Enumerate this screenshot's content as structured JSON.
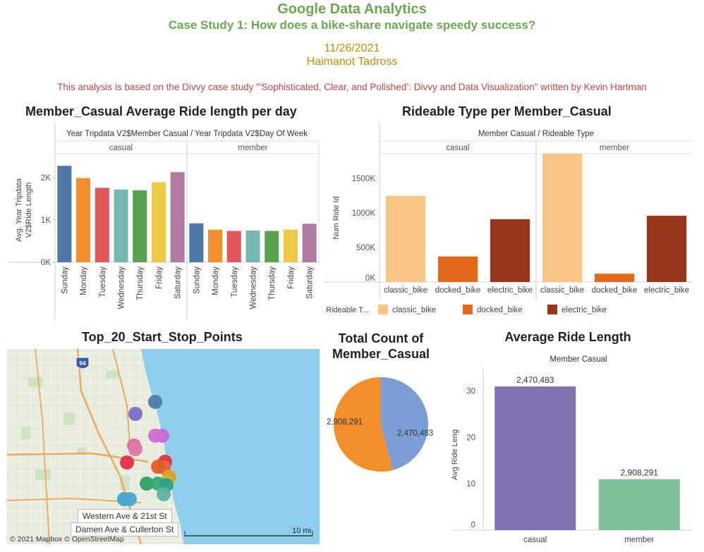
{
  "header": {
    "title": "Google Data Analytics",
    "subtitle": "Case Study 1: How does a bike-share navigate speedy success?",
    "date": "11/26/2021",
    "author": "Haimanot Tadross",
    "note": "This analysis is based on the Divvy case study \"'Sophisticated, Clear, and Polished’: Divvy and Data Visualization\" written by Kevin Hartman"
  },
  "chart_data": [
    {
      "id": "avg_ride_per_day",
      "type": "bar",
      "title": "Member_Casual Average Ride length per day",
      "header": "Year Tripdata V2$Member Casual / Year Tripdata V2$Day Of Week",
      "ylabel_line1": "Avg. Year Tripdata",
      "ylabel_line2": "V2$Ride Length",
      "ylim": [
        0,
        2500
      ],
      "yticks": [
        0,
        1000,
        2000
      ],
      "ytick_labels": [
        "0K",
        "1K",
        "2K"
      ],
      "groups": [
        "casual",
        "member"
      ],
      "categories": [
        "Sunday",
        "Monday",
        "Tuesday",
        "Wednesday",
        "Thursday",
        "Friday",
        "Saturday"
      ],
      "colors": [
        "#4e79a7",
        "#f28e2b",
        "#e15759",
        "#76b7b2",
        "#59a14f",
        "#edc948",
        "#b07aa1"
      ],
      "series": [
        {
          "name": "casual",
          "values": [
            2280,
            1990,
            1760,
            1720,
            1700,
            1890,
            2130
          ]
        },
        {
          "name": "member",
          "values": [
            920,
            770,
            740,
            750,
            740,
            770,
            910
          ]
        }
      ]
    },
    {
      "id": "rideable_type",
      "type": "bar",
      "title": "Rideable Type per Member_Casual",
      "header": "Member Casual / Rideable Type",
      "ylabel": "Num Ride Id",
      "ylim": [
        0,
        1900000
      ],
      "yticks": [
        0,
        500000,
        1000000,
        1500000
      ],
      "ytick_labels": [
        "0K",
        "500K",
        "1000K",
        "1500K"
      ],
      "groups": [
        "casual",
        "member"
      ],
      "categories": [
        "classic_bike",
        "docked_bike",
        "electric_bike"
      ],
      "colors": [
        "#f8c584",
        "#e2691a",
        "#98361c"
      ],
      "series": [
        {
          "name": "casual",
          "values": [
            1250000,
            370000,
            910000
          ]
        },
        {
          "name": "member",
          "values": [
            1860000,
            120000,
            960000
          ]
        }
      ],
      "legend_title": "Rideable T...",
      "legend_placement": "bottom"
    },
    {
      "id": "total_count",
      "type": "pie",
      "title_line1": "Total Count of",
      "title_line2": "Member_Casual",
      "labels": [
        "member",
        "casual"
      ],
      "values": [
        2908291,
        2470483
      ],
      "value_labels": [
        "2,908,291",
        "2,470,483"
      ],
      "colors": [
        "#f28e2b",
        "#7b9fd4"
      ]
    },
    {
      "id": "avg_ride_length",
      "type": "bar",
      "title": "Average Ride Length",
      "header": "Member Casual",
      "ylabel": "Avg Ride Leng",
      "ylim": [
        0,
        33
      ],
      "yticks": [
        0,
        10,
        20,
        30
      ],
      "categories": [
        "casual",
        "member"
      ],
      "values": [
        31,
        11
      ],
      "data_labels": [
        "2,470,483",
        "2,908,291"
      ],
      "colors": [
        "#8173b1",
        "#7fbf9a"
      ]
    }
  ],
  "map": {
    "title": "Top_20_Start_Stop_Points",
    "label1": "Western Ave & 21st St",
    "label2": "Damen Ave & Cullerton St",
    "scale": "10 mi",
    "attribution": "© 2021 Mapbox  © OpenStreetMap",
    "shield": "94",
    "water_color": "#8ecfee",
    "land_color": "#e8ecdf"
  }
}
